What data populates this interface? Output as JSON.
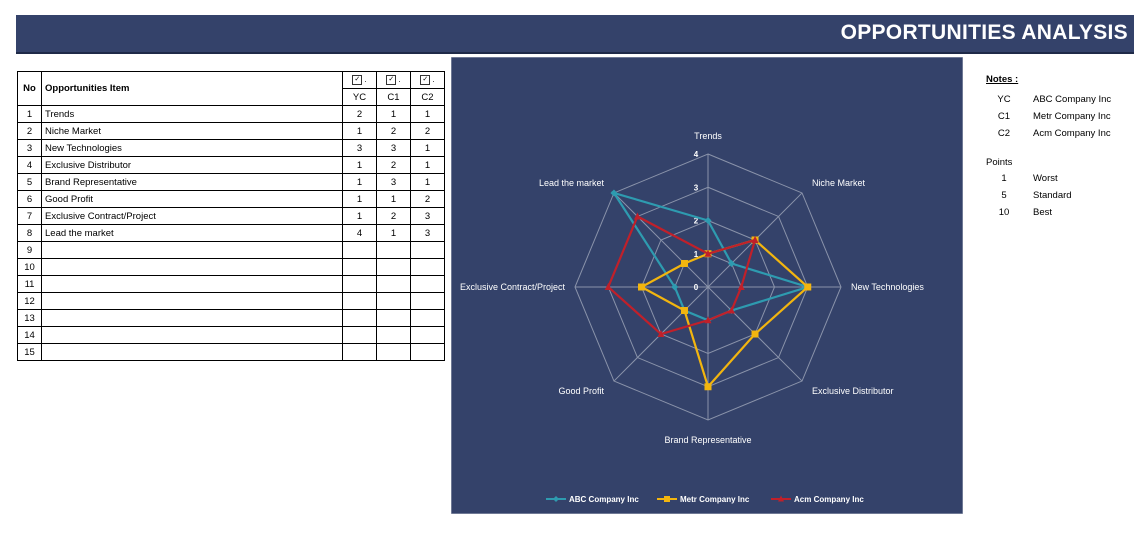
{
  "header": {
    "title": "OPPORTUNITIES ANALYSIS"
  },
  "table": {
    "col_no": "No",
    "col_item": "Opportunities Item",
    "check_mark": "✓",
    "companies": [
      "YC",
      "C1",
      "C2"
    ],
    "rows": [
      {
        "no": "1",
        "item": "Trends",
        "yc": "2",
        "c1": "1",
        "c2": "1"
      },
      {
        "no": "2",
        "item": "Niche Market",
        "yc": "1",
        "c1": "2",
        "c2": "2"
      },
      {
        "no": "3",
        "item": "New Technologies",
        "yc": "3",
        "c1": "3",
        "c2": "1"
      },
      {
        "no": "4",
        "item": "Exclusive Distributor",
        "yc": "1",
        "c1": "2",
        "c2": "1"
      },
      {
        "no": "5",
        "item": "Brand Representative",
        "yc": "1",
        "c1": "3",
        "c2": "1"
      },
      {
        "no": "6",
        "item": "Good Profit",
        "yc": "1",
        "c1": "1",
        "c2": "2"
      },
      {
        "no": "7",
        "item": "Exclusive Contract/Project",
        "yc": "1",
        "c1": "2",
        "c2": "3"
      },
      {
        "no": "8",
        "item": "Lead the market",
        "yc": "4",
        "c1": "1",
        "c2": "3"
      },
      {
        "no": "9",
        "item": "",
        "yc": "",
        "c1": "",
        "c2": ""
      },
      {
        "no": "10",
        "item": "",
        "yc": "",
        "c1": "",
        "c2": ""
      },
      {
        "no": "11",
        "item": "",
        "yc": "",
        "c1": "",
        "c2": ""
      },
      {
        "no": "12",
        "item": "",
        "yc": "",
        "c1": "",
        "c2": ""
      },
      {
        "no": "13",
        "item": "",
        "yc": "",
        "c1": "",
        "c2": ""
      },
      {
        "no": "14",
        "item": "",
        "yc": "",
        "c1": "",
        "c2": ""
      },
      {
        "no": "15",
        "item": "",
        "yc": "",
        "c1": "",
        "c2": ""
      }
    ]
  },
  "notes": {
    "title": "Notes :",
    "companies": [
      {
        "code": "YC",
        "name": "ABC Company Inc"
      },
      {
        "code": "C1",
        "name": "Metr Company Inc"
      },
      {
        "code": "C2",
        "name": "Acm Company Inc"
      }
    ],
    "points_title": "Points",
    "points": [
      {
        "value": "1",
        "label": "Worst"
      },
      {
        "value": "5",
        "label": "Standard"
      },
      {
        "value": "10",
        "label": "Best"
      }
    ]
  },
  "chart_data": {
    "type": "radar",
    "categories": [
      "Trends",
      "Niche Market",
      "New Technologies",
      "Exclusive Distributor",
      "Brand Representative",
      "Good Profit",
      "Exclusive Contract/Project",
      "Lead the market"
    ],
    "rlim": [
      0,
      4
    ],
    "ticks": [
      "0",
      "1",
      "2",
      "3",
      "4"
    ],
    "grid": true,
    "legend_position": "bottom",
    "background": "#34426a",
    "series": [
      {
        "name": "ABC Company Inc",
        "color": "#2e9bb0",
        "marker": "diamond",
        "values": [
          2,
          1,
          3,
          1,
          1,
          1,
          1,
          4
        ]
      },
      {
        "name": "Metr Company Inc",
        "color": "#f2b50f",
        "marker": "square",
        "values": [
          1,
          2,
          3,
          2,
          3,
          1,
          2,
          1
        ]
      },
      {
        "name": "Acm Company Inc",
        "color": "#c0202a",
        "marker": "triangle",
        "values": [
          1,
          2,
          1,
          1,
          1,
          2,
          3,
          3
        ]
      }
    ]
  }
}
